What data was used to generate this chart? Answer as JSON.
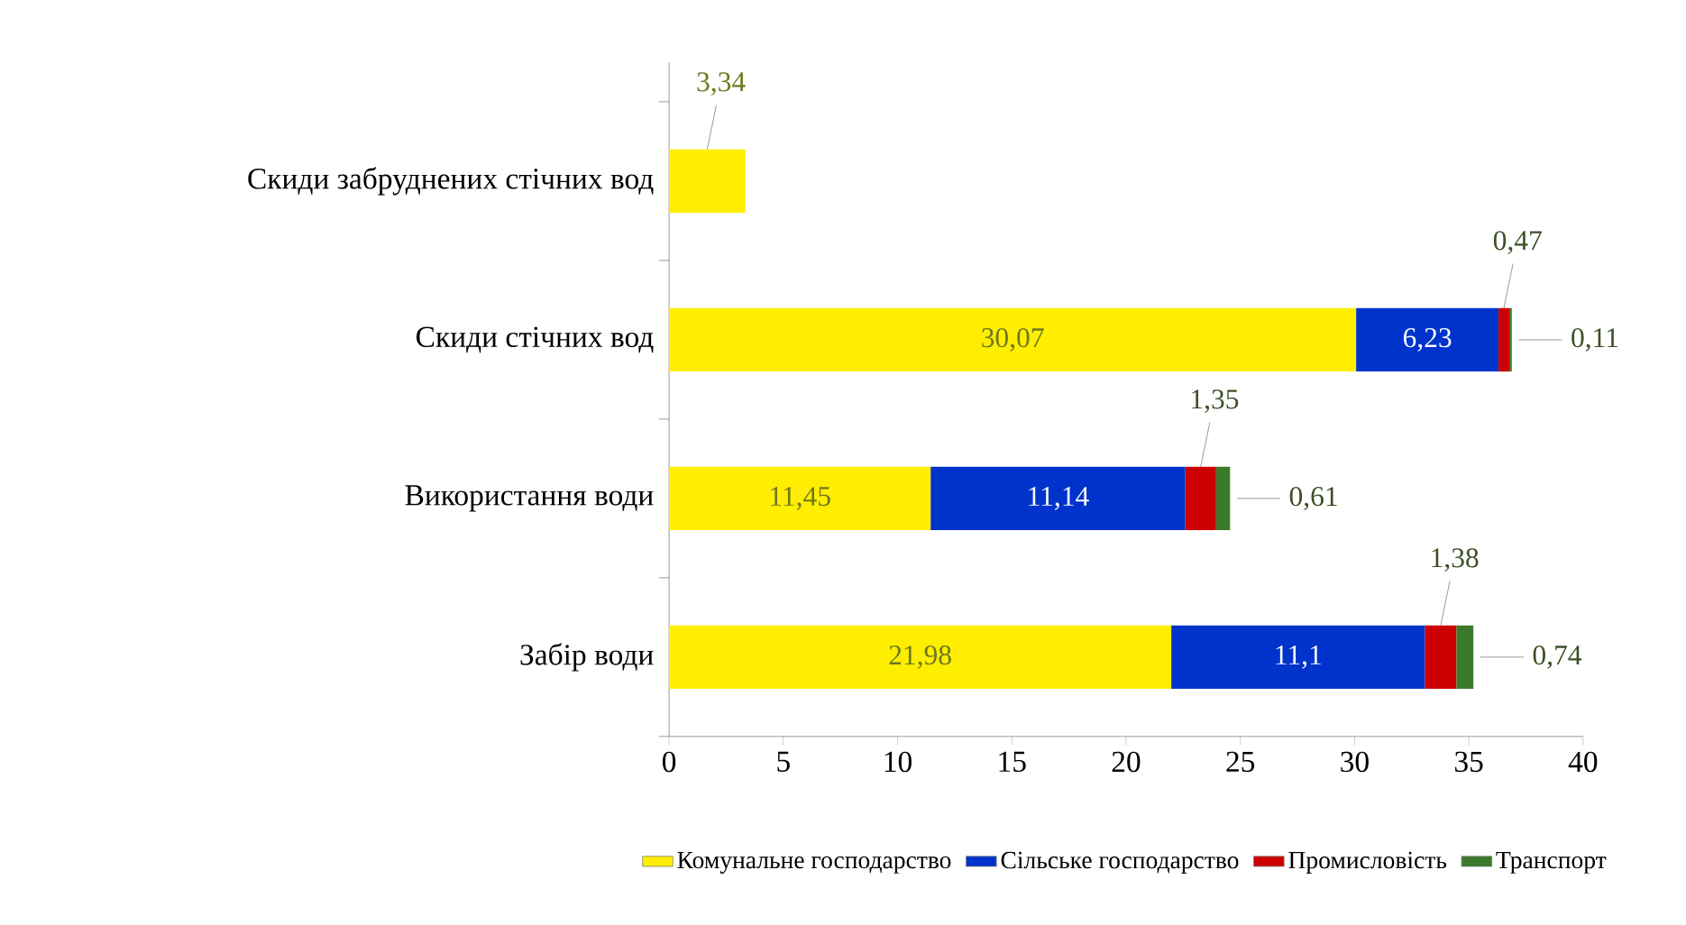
{
  "chart_data": {
    "type": "bar",
    "orientation": "horizontal",
    "stacked": true,
    "categories": [
      "Скиди забруднених стічних вод",
      "Скиди стічних вод",
      "Використання води",
      "Забір води"
    ],
    "series": [
      {
        "name": "Комунальне господарство",
        "color": "#ffee00",
        "values": [
          3.34,
          30.07,
          11.45,
          21.98
        ],
        "value_labels": [
          "3,34",
          "30,07",
          "11,45",
          "21,98"
        ]
      },
      {
        "name": "Сільське господарство",
        "color": "#0033cc",
        "values": [
          null,
          6.23,
          11.14,
          11.1
        ],
        "value_labels": [
          null,
          "6,23",
          "11,14",
          "11,1"
        ]
      },
      {
        "name": "Промисловість",
        "color": "#cc0000",
        "values": [
          null,
          0.47,
          1.35,
          1.38
        ],
        "value_labels": [
          null,
          "0,47",
          "1,35",
          "1,38"
        ]
      },
      {
        "name": "Транспорт",
        "color": "#3a7a2a",
        "values": [
          null,
          0.11,
          0.61,
          0.74
        ],
        "value_labels": [
          null,
          "0,11",
          "0,61",
          "0,74"
        ]
      }
    ],
    "xlim": [
      0,
      40
    ],
    "xticks": [
      0,
      5,
      10,
      15,
      20,
      25,
      30,
      35,
      40
    ],
    "grid": false,
    "legend": "bottom"
  }
}
